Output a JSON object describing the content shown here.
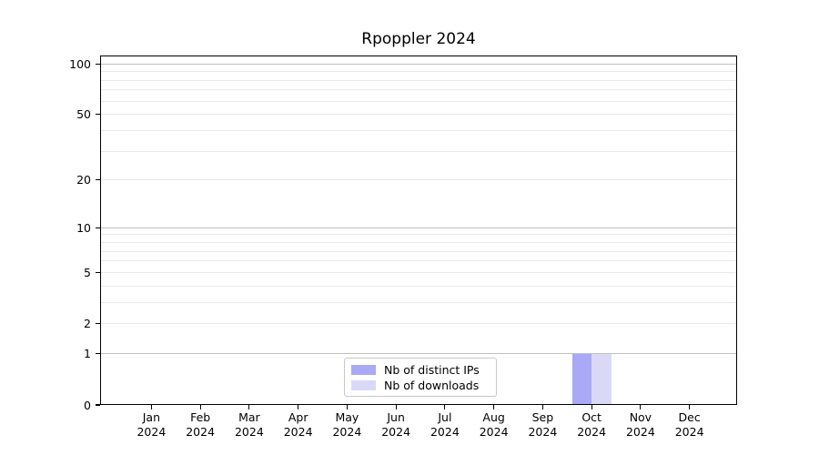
{
  "chart_data": {
    "type": "bar",
    "title": "Rpoppler 2024",
    "xlabel": "",
    "ylabel": "",
    "categories": [
      "Jan",
      "Feb",
      "Mar",
      "Apr",
      "May",
      "Jun",
      "Jul",
      "Aug",
      "Sep",
      "Oct",
      "Nov",
      "Dec"
    ],
    "x_year": "2024",
    "series": [
      {
        "name": "Nb of distinct IPs",
        "color": "#a9a9f5",
        "values": [
          0,
          0,
          0,
          0,
          0,
          0,
          0,
          0,
          0,
          1,
          0,
          0
        ]
      },
      {
        "name": "Nb of downloads",
        "color": "#d9d9f7",
        "values": [
          0,
          0,
          0,
          0,
          0,
          0,
          0,
          0,
          0,
          1,
          0,
          0
        ]
      }
    ],
    "yscale": "log1p",
    "ylim": [
      0,
      112
    ],
    "y_tick_values": [
      0,
      1,
      2,
      5,
      10,
      20,
      50,
      100
    ],
    "grid": {
      "major_values": [
        1,
        10,
        100
      ],
      "minor_values": [
        2,
        3,
        4,
        5,
        6,
        7,
        8,
        9,
        20,
        30,
        40,
        50,
        60,
        70,
        80,
        90
      ],
      "major_color": "#c0c0c0",
      "minor_color": "#e9e9e9"
    },
    "legend_position": "lower center"
  }
}
